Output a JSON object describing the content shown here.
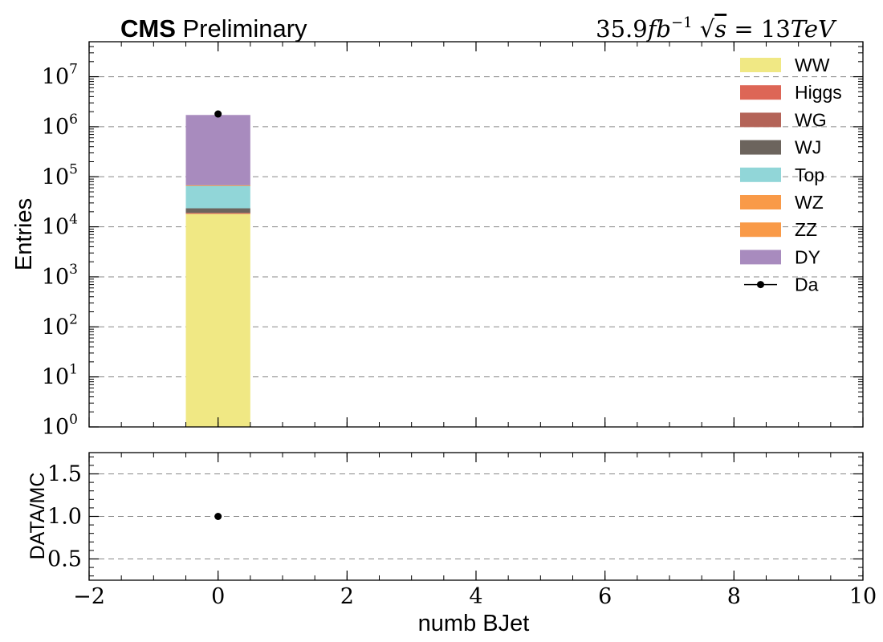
{
  "header": {
    "cms_bold": "CMS",
    "cms_rest": " Preliminary",
    "lumi_value": "35.9",
    "lumi_unit_base": "fb",
    "lumi_unit_exp": "−1",
    "sqrt_symbol": "√",
    "sqrt_arg": "s",
    "energy": " = 13",
    "energy_unit": "TeV"
  },
  "chart_data": [
    {
      "type": "bar",
      "stacked": true,
      "xlabel": "",
      "ylabel": "Entries",
      "yscale": "log",
      "ylim": [
        1,
        50000000
      ],
      "xlim": [
        -2,
        10
      ],
      "bin_edges": [
        -0.5,
        0.5
      ],
      "grid": "y-dashed",
      "legend_position": "top-right",
      "y_tick_labels": [
        {
          "base": "10",
          "exp": "0"
        },
        {
          "base": "10",
          "exp": "1"
        },
        {
          "base": "10",
          "exp": "2"
        },
        {
          "base": "10",
          "exp": "3"
        },
        {
          "base": "10",
          "exp": "4"
        },
        {
          "base": "10",
          "exp": "5"
        },
        {
          "base": "10",
          "exp": "6"
        },
        {
          "base": "10",
          "exp": "7"
        }
      ],
      "series": [
        {
          "name": "WW",
          "color": "#f0e884",
          "values": [
            18500
          ]
        },
        {
          "name": "Higgs",
          "color": "#dd6656",
          "values": [
            150
          ]
        },
        {
          "name": "WG",
          "color": "#b46458",
          "values": [
            500
          ]
        },
        {
          "name": "WJ",
          "color": "#6c645d",
          "values": [
            4300
          ]
        },
        {
          "name": "Top",
          "color": "#91d6d8",
          "values": [
            44000
          ]
        },
        {
          "name": "WZ",
          "color": "#f99a48",
          "values": [
            120
          ]
        },
        {
          "name": "ZZ",
          "color": "#f99a48",
          "values": [
            100
          ]
        },
        {
          "name": "DY",
          "color": "#a88bbe",
          "values": [
            1650000
          ]
        }
      ],
      "data_points": {
        "name": "Da",
        "x": [
          0
        ],
        "y": [
          1800000
        ],
        "color": "#000000"
      }
    },
    {
      "type": "scatter",
      "xlabel": "numb BJet",
      "ylabel": "DATA/MC",
      "ylim": [
        0.25,
        1.75
      ],
      "xlim": [
        -2,
        10
      ],
      "grid": "y-dashed",
      "y_ticks": [
        0.5,
        1.0,
        1.5
      ],
      "y_tick_labels": [
        "0.5",
        "1.0",
        "1.5"
      ],
      "x_ticks": [
        -2,
        0,
        2,
        4,
        6,
        8,
        10
      ],
      "x_tick_labels": [
        "−2",
        "0",
        "2",
        "4",
        "6",
        "8",
        "10"
      ],
      "points": [
        {
          "x": 0,
          "y": 1.0
        }
      ]
    }
  ]
}
